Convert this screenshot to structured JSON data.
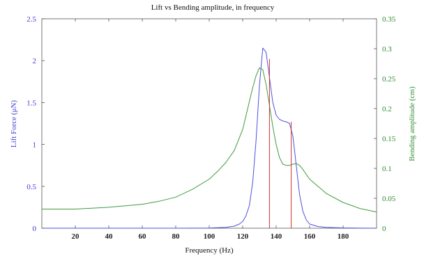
{
  "chart_data": {
    "type": "line",
    "title": "Lift vs Bending amplitude, in frequency",
    "xlabel": "Frequency (Hz)",
    "ylabel_left": "Lift Force (μN)",
    "ylabel_right": "Bending amplitude (cm)",
    "xlim": [
      0,
      200
    ],
    "ylim_left": [
      0,
      2.5
    ],
    "ylim_right": [
      0,
      0.35
    ],
    "x_ticks": [
      "20",
      "40",
      "60",
      "80",
      "100",
      "120",
      "140",
      "160",
      "180"
    ],
    "y_left_ticks": [
      "0",
      "0.5",
      "1",
      "1.5",
      "2",
      "2.5"
    ],
    "y_right_ticks": [
      "0",
      "0.05",
      "0.1",
      "0.15",
      "0.2",
      "0.25",
      "0.3",
      "0.35"
    ],
    "grid": false,
    "colors": {
      "lift": "#4f4fe0",
      "bending": "#3e9a3e",
      "marker": "#cc3333",
      "left_axis": "#3b3bd6",
      "right_axis": "#2e8b2e"
    },
    "series": [
      {
        "axis": "left",
        "color": "#4f4fe0",
        "x": [
          0,
          20,
          40,
          60,
          80,
          100,
          110,
          115,
          118,
          120,
          122,
          124,
          126,
          128,
          130,
          132,
          134,
          136,
          138,
          140,
          142,
          144,
          146,
          148,
          150,
          152,
          154,
          156,
          158,
          160,
          165,
          170,
          180,
          190,
          200
        ],
        "values": [
          0,
          0,
          0,
          0,
          0,
          0.002,
          0.01,
          0.025,
          0.05,
          0.08,
          0.15,
          0.27,
          0.55,
          1.05,
          1.7,
          2.15,
          2.1,
          1.8,
          1.5,
          1.35,
          1.3,
          1.28,
          1.27,
          1.25,
          1.1,
          0.75,
          0.4,
          0.2,
          0.1,
          0.05,
          0.02,
          0.01,
          0.003,
          0.001,
          0
        ]
      },
      {
        "axis": "right",
        "color": "#3e9a3e",
        "x": [
          0,
          20,
          40,
          60,
          70,
          80,
          90,
          100,
          105,
          110,
          115,
          120,
          123,
          126,
          128,
          130,
          132,
          134,
          136,
          138,
          140,
          142,
          144,
          146,
          148,
          150,
          152,
          154,
          156,
          158,
          160,
          170,
          180,
          190,
          200
        ],
        "values": [
          0.032,
          0.032,
          0.035,
          0.04,
          0.045,
          0.052,
          0.065,
          0.082,
          0.095,
          0.11,
          0.13,
          0.165,
          0.2,
          0.235,
          0.255,
          0.268,
          0.265,
          0.24,
          0.205,
          0.17,
          0.14,
          0.118,
          0.107,
          0.105,
          0.105,
          0.107,
          0.108,
          0.105,
          0.098,
          0.09,
          0.082,
          0.058,
          0.043,
          0.033,
          0.027
        ]
      }
    ],
    "vertical_markers": [
      {
        "x": 136,
        "y_top_left": 2.02
      },
      {
        "x": 149,
        "y_top_left": 1.27
      }
    ]
  }
}
